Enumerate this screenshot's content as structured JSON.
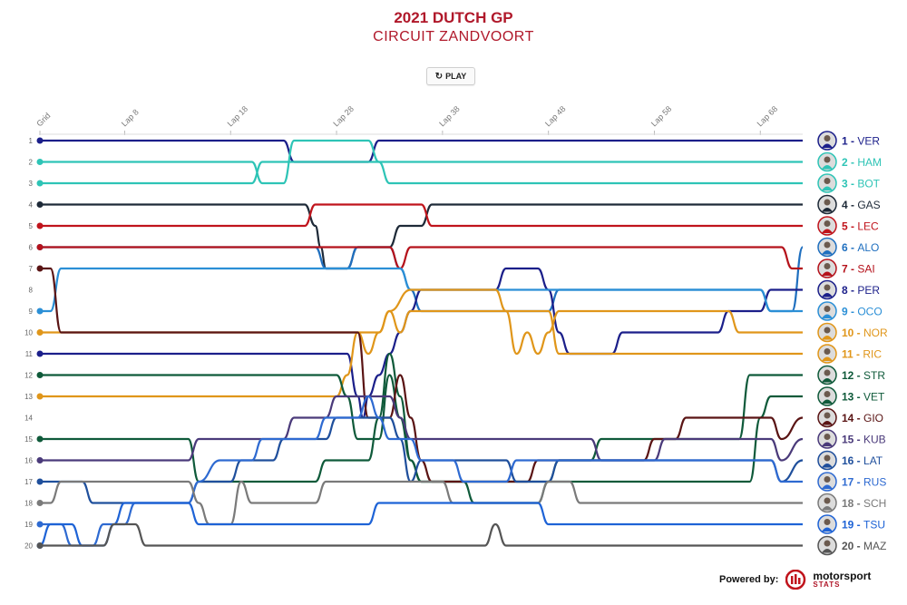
{
  "header": {
    "title": "2021 DUTCH GP",
    "subtitle": "CIRCUIT ZANDVOORT"
  },
  "controls": {
    "play_label": "PLAY",
    "play_icon": "replay-icon"
  },
  "footer": {
    "powered_by": "Powered by:",
    "brand_top": "motorsport",
    "brand_bottom": "STATS"
  },
  "chart_data": {
    "type": "line",
    "x_tick_labels": [
      "Grid",
      "Lap 8",
      "Lap 18",
      "Lap 28",
      "Lap 38",
      "Lap 48",
      "Lap 58",
      "Lap 68"
    ],
    "x_tick_laps": [
      0,
      8,
      18,
      28,
      38,
      48,
      58,
      68
    ],
    "x_range": [
      0,
      72
    ],
    "y_range": [
      1,
      20
    ],
    "grid_positions": [
      "1",
      "2",
      "3",
      "4",
      "5",
      "6",
      "7",
      "8",
      "9",
      "10",
      "11",
      "12",
      "13",
      "14",
      "15",
      "16",
      "17",
      "18",
      "19",
      "20"
    ],
    "series": [
      {
        "code": "VER",
        "color": "#1b1f8a",
        "final": 1,
        "pos": [
          [
            0,
            1
          ],
          [
            23,
            1
          ],
          [
            24,
            2
          ],
          [
            31,
            2
          ],
          [
            32,
            1
          ],
          [
            72,
            1
          ]
        ]
      },
      {
        "code": "HAM",
        "color": "#2ec4b6",
        "final": 2,
        "pos": [
          [
            0,
            2
          ],
          [
            20,
            2
          ],
          [
            21,
            3
          ],
          [
            23,
            3
          ],
          [
            24,
            1
          ],
          [
            31,
            1
          ],
          [
            32,
            2
          ],
          [
            72,
            2
          ]
        ]
      },
      {
        "code": "BOT",
        "color": "#2ec4b6",
        "final": 3,
        "pos": [
          [
            0,
            3
          ],
          [
            20,
            3
          ],
          [
            21,
            2
          ],
          [
            32,
            2
          ],
          [
            33,
            3
          ],
          [
            72,
            3
          ]
        ]
      },
      {
        "code": "GAS",
        "color": "#1e2a38",
        "final": 4,
        "pos": [
          [
            0,
            4
          ],
          [
            25,
            4
          ],
          [
            26,
            5
          ],
          [
            26.5,
            6
          ],
          [
            27,
            7
          ],
          [
            29,
            7
          ],
          [
            30,
            6
          ],
          [
            33,
            6
          ],
          [
            34,
            5
          ],
          [
            36,
            5
          ],
          [
            37,
            4
          ],
          [
            72,
            4
          ]
        ]
      },
      {
        "code": "LEC",
        "color": "#c0141c",
        "final": 5,
        "pos": [
          [
            0,
            5
          ],
          [
            25,
            5
          ],
          [
            26,
            4
          ],
          [
            36,
            4
          ],
          [
            37,
            5
          ],
          [
            72,
            5
          ]
        ]
      },
      {
        "code": "ALO",
        "color": "#1f6fbf",
        "final": 6,
        "pos": [
          [
            0,
            6
          ],
          [
            26,
            6
          ],
          [
            27,
            7
          ],
          [
            29,
            7
          ],
          [
            30,
            6
          ],
          [
            33,
            6
          ],
          [
            34,
            7
          ],
          [
            35,
            8
          ],
          [
            36,
            9
          ],
          [
            48,
            9
          ],
          [
            49,
            8
          ],
          [
            68,
            8
          ],
          [
            69,
            9
          ],
          [
            71,
            9
          ],
          [
            72,
            6
          ]
        ]
      },
      {
        "code": "SAI",
        "color": "#b5121b",
        "final": 7,
        "pos": [
          [
            0,
            6
          ],
          [
            33,
            6
          ],
          [
            34,
            7
          ],
          [
            35,
            6
          ],
          [
            70,
            6
          ],
          [
            71,
            7
          ],
          [
            72,
            7
          ]
        ]
      },
      {
        "code": "PER",
        "color": "#1b1f8a",
        "final": 8,
        "pos": [
          [
            0,
            11
          ],
          [
            29,
            11
          ],
          [
            30,
            13
          ],
          [
            30.5,
            14
          ],
          [
            31,
            13
          ],
          [
            32,
            12
          ],
          [
            33,
            11
          ],
          [
            34,
            10
          ],
          [
            35,
            9
          ],
          [
            36,
            8
          ],
          [
            43,
            8
          ],
          [
            44,
            7
          ],
          [
            47,
            7
          ],
          [
            48,
            8
          ],
          [
            49,
            10
          ],
          [
            50,
            11
          ],
          [
            54,
            11
          ],
          [
            55,
            10
          ],
          [
            64,
            10
          ],
          [
            65,
            9
          ],
          [
            68,
            9
          ],
          [
            69,
            8
          ],
          [
            72,
            8
          ]
        ]
      },
      {
        "code": "OCO",
        "color": "#2b8fd6",
        "final": 9,
        "pos": [
          [
            0,
            9
          ],
          [
            1,
            9
          ],
          [
            2,
            7
          ],
          [
            34,
            7
          ],
          [
            35,
            8
          ],
          [
            68,
            8
          ],
          [
            69,
            9
          ],
          [
            72,
            9
          ]
        ]
      },
      {
        "code": "NOR",
        "color": "#e0961a",
        "final": 10,
        "pos": [
          [
            0,
            13
          ],
          [
            28,
            13
          ],
          [
            29,
            12
          ],
          [
            30,
            10
          ],
          [
            32,
            10
          ],
          [
            33,
            9
          ],
          [
            35,
            8
          ],
          [
            43,
            8
          ],
          [
            44,
            9
          ],
          [
            45,
            11
          ],
          [
            46,
            10
          ],
          [
            47,
            11
          ],
          [
            48,
            10
          ],
          [
            49,
            9
          ],
          [
            65,
            9
          ],
          [
            66,
            10
          ],
          [
            72,
            10
          ]
        ]
      },
      {
        "code": "RIC",
        "color": "#e0961a",
        "final": 11,
        "pos": [
          [
            0,
            10
          ],
          [
            30,
            10
          ],
          [
            31,
            11
          ],
          [
            32,
            10
          ],
          [
            33,
            9
          ],
          [
            34,
            10
          ],
          [
            35,
            9
          ],
          [
            48,
            9
          ],
          [
            49,
            11
          ],
          [
            72,
            11
          ]
        ]
      },
      {
        "code": "STR",
        "color": "#0f5a3a",
        "final": 12,
        "pos": [
          [
            0,
            12
          ],
          [
            28,
            12
          ],
          [
            29,
            13
          ],
          [
            30,
            15
          ],
          [
            32,
            15
          ],
          [
            33,
            12
          ],
          [
            34,
            14
          ],
          [
            35,
            16
          ],
          [
            36,
            17
          ],
          [
            48,
            17
          ],
          [
            49,
            16
          ],
          [
            52,
            16
          ],
          [
            53,
            15
          ],
          [
            66,
            15
          ],
          [
            67,
            12
          ],
          [
            70,
            12
          ],
          [
            72,
            12
          ]
        ]
      },
      {
        "code": "VET",
        "color": "#0f5a3a",
        "final": 13,
        "pos": [
          [
            0,
            15
          ],
          [
            14,
            15
          ],
          [
            15,
            17
          ],
          [
            26,
            17
          ],
          [
            27,
            16
          ],
          [
            31,
            16
          ],
          [
            32,
            14
          ],
          [
            33,
            11
          ],
          [
            34,
            13
          ],
          [
            35,
            16
          ],
          [
            36,
            17
          ],
          [
            40,
            17
          ],
          [
            41,
            18
          ],
          [
            47,
            18
          ],
          [
            48,
            17
          ],
          [
            67,
            17
          ],
          [
            68,
            14
          ],
          [
            69,
            13
          ],
          [
            72,
            13
          ]
        ]
      },
      {
        "code": "GIO",
        "color": "#5a1414",
        "final": 14,
        "pos": [
          [
            0,
            7
          ],
          [
            1,
            7
          ],
          [
            2,
            10
          ],
          [
            30,
            10
          ],
          [
            31,
            14
          ],
          [
            33,
            14
          ],
          [
            34,
            12
          ],
          [
            35,
            14
          ],
          [
            36,
            16
          ],
          [
            37,
            17
          ],
          [
            46,
            17
          ],
          [
            47,
            16
          ],
          [
            57,
            16
          ],
          [
            58,
            15
          ],
          [
            60,
            15
          ],
          [
            61,
            14
          ],
          [
            69,
            14
          ],
          [
            70,
            15
          ],
          [
            72,
            14
          ]
        ]
      },
      {
        "code": "KUB",
        "color": "#4a3a7a",
        "final": 15,
        "pos": [
          [
            0,
            16
          ],
          [
            14,
            16
          ],
          [
            15,
            15
          ],
          [
            23,
            15
          ],
          [
            24,
            14
          ],
          [
            27,
            14
          ],
          [
            28,
            13
          ],
          [
            33,
            13
          ],
          [
            34,
            14
          ],
          [
            35,
            15
          ],
          [
            52,
            15
          ],
          [
            53,
            16
          ],
          [
            58,
            16
          ],
          [
            59,
            15
          ],
          [
            69,
            15
          ],
          [
            70,
            16
          ],
          [
            72,
            15
          ]
        ]
      },
      {
        "code": "LAT",
        "color": "#1f4f9c",
        "final": 16,
        "pos": [
          [
            0,
            17
          ],
          [
            4,
            17
          ],
          [
            5,
            18
          ],
          [
            14,
            18
          ],
          [
            15,
            17
          ],
          [
            18,
            17
          ],
          [
            19,
            16
          ],
          [
            22,
            16
          ],
          [
            23,
            15
          ],
          [
            27,
            15
          ],
          [
            28,
            14
          ],
          [
            33,
            14
          ],
          [
            34,
            15
          ],
          [
            35,
            17
          ],
          [
            36,
            16
          ],
          [
            44,
            16
          ],
          [
            45,
            17
          ],
          [
            48,
            17
          ],
          [
            49,
            16
          ],
          [
            69,
            16
          ],
          [
            70,
            17
          ],
          [
            72,
            16
          ]
        ]
      },
      {
        "code": "RUS",
        "color": "#2e6ad1",
        "final": 17,
        "pos": [
          [
            0,
            19
          ],
          [
            2,
            19
          ],
          [
            3,
            20
          ],
          [
            5,
            20
          ],
          [
            6,
            19
          ],
          [
            8,
            19
          ],
          [
            9,
            18
          ],
          [
            14,
            18
          ],
          [
            15,
            17
          ],
          [
            17,
            16
          ],
          [
            20,
            16
          ],
          [
            21,
            15
          ],
          [
            26,
            15
          ],
          [
            27,
            14
          ],
          [
            30,
            14
          ],
          [
            31,
            13
          ],
          [
            32,
            14
          ],
          [
            33,
            15
          ],
          [
            35,
            15
          ],
          [
            36,
            16
          ],
          [
            39,
            16
          ],
          [
            40,
            17
          ],
          [
            44,
            17
          ],
          [
            45,
            16
          ],
          [
            69,
            16
          ],
          [
            70,
            17
          ],
          [
            72,
            17
          ]
        ]
      },
      {
        "code": "SCH",
        "color": "#7a7a7a",
        "final": 18,
        "pos": [
          [
            0,
            18
          ],
          [
            1,
            18
          ],
          [
            2,
            17
          ],
          [
            14,
            17
          ],
          [
            15,
            18
          ],
          [
            16,
            19
          ],
          [
            18,
            19
          ],
          [
            19,
            17
          ],
          [
            20,
            18
          ],
          [
            26,
            18
          ],
          [
            27,
            17
          ],
          [
            38,
            17
          ],
          [
            39,
            18
          ],
          [
            47,
            18
          ],
          [
            48,
            17
          ],
          [
            50,
            17
          ],
          [
            51,
            18
          ],
          [
            72,
            18
          ]
        ]
      },
      {
        "code": "TSU",
        "color": "#1e63d6",
        "final": 19,
        "pos": [
          [
            0,
            20
          ],
          [
            1,
            19
          ],
          [
            3,
            19
          ],
          [
            4,
            20
          ],
          [
            6,
            20
          ],
          [
            7,
            19
          ],
          [
            8,
            18
          ],
          [
            14,
            18
          ],
          [
            15,
            19
          ],
          [
            30,
            19
          ],
          [
            31,
            19
          ],
          [
            32,
            18
          ],
          [
            47,
            18
          ],
          [
            48,
            19
          ],
          [
            72,
            19
          ]
        ]
      },
      {
        "code": "MAZ",
        "color": "#555555",
        "final": 20,
        "pos": [
          [
            0,
            20
          ],
          [
            5,
            20
          ],
          [
            6,
            20
          ],
          [
            7,
            19
          ],
          [
            9,
            19
          ],
          [
            10,
            20
          ],
          [
            42,
            20
          ],
          [
            43,
            19
          ],
          [
            44,
            20
          ],
          [
            72,
            20
          ]
        ]
      }
    ]
  }
}
